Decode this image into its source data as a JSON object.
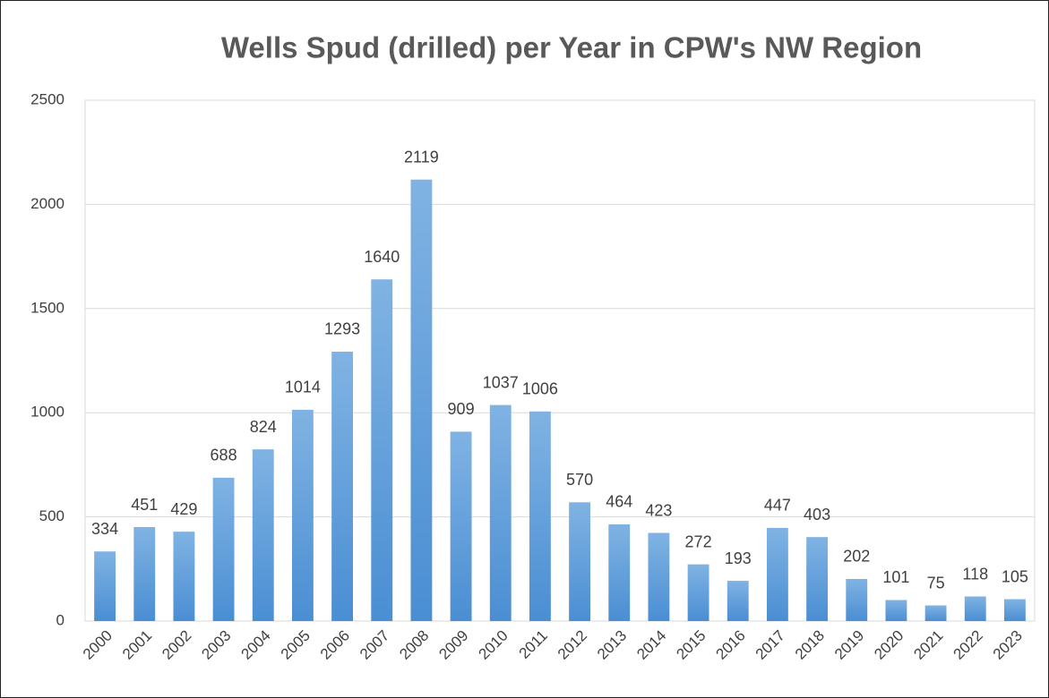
{
  "chart_data": {
    "type": "bar",
    "title": "Wells Spud (drilled) per Year in CPW's NW Region",
    "categories": [
      "2000",
      "2001",
      "2002",
      "2003",
      "2004",
      "2005",
      "2006",
      "2007",
      "2008",
      "2009",
      "2010",
      "2011",
      "2012",
      "2013",
      "2014",
      "2015",
      "2016",
      "2017",
      "2018",
      "2019",
      "2020",
      "2021",
      "2022",
      "2023"
    ],
    "values": [
      334,
      451,
      429,
      688,
      824,
      1014,
      1293,
      1640,
      2119,
      909,
      1037,
      1006,
      570,
      464,
      423,
      272,
      193,
      447,
      403,
      202,
      101,
      75,
      118,
      105
    ],
    "color": "#5b9bd5",
    "ylim": [
      0,
      2500
    ],
    "yticks": [
      0,
      500,
      1000,
      1500,
      2000,
      2500
    ],
    "grid": true
  }
}
